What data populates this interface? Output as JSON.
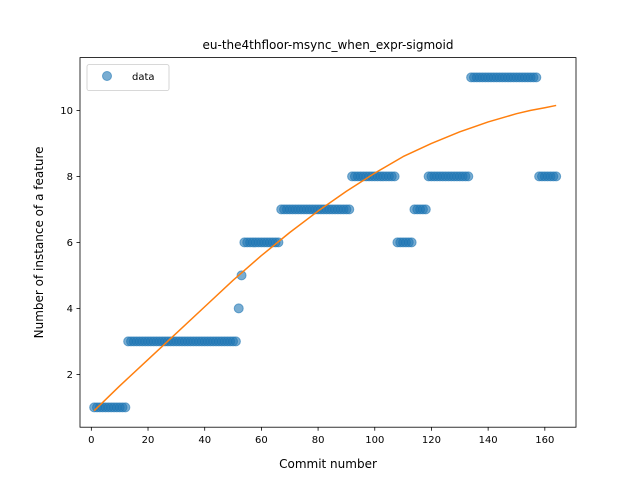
{
  "chart_data": {
    "type": "scatter",
    "title": "eu-the4thfloor-msync_when_expr-sigmoid",
    "xlabel": "Commit number",
    "ylabel": "Number of instance of a feature",
    "xlim": [
      -4,
      171
    ],
    "ylim": [
      0.4,
      11.6
    ],
    "xticks": [
      0,
      20,
      40,
      60,
      80,
      100,
      120,
      140,
      160
    ],
    "yticks": [
      2,
      4,
      6,
      8,
      10
    ],
    "grid": false,
    "legend": {
      "position": "top-left",
      "entries": [
        "data"
      ]
    },
    "series": [
      {
        "name": "data",
        "kind": "scatter",
        "color": "#1f77b4",
        "segments": [
          {
            "x_from": 1,
            "x_to": 12,
            "y": 1
          },
          {
            "x_from": 13,
            "x_to": 51,
            "y": 3
          },
          {
            "x_from": 52,
            "x_to": 52,
            "y": 4
          },
          {
            "x_from": 53,
            "x_to": 53,
            "y": 5
          },
          {
            "x_from": 54,
            "x_to": 66,
            "y": 6
          },
          {
            "x_from": 67,
            "x_to": 91,
            "y": 7
          },
          {
            "x_from": 92,
            "x_to": 107,
            "y": 8
          },
          {
            "x_from": 108,
            "x_to": 113,
            "y": 6
          },
          {
            "x_from": 114,
            "x_to": 118,
            "y": 7
          },
          {
            "x_from": 119,
            "x_to": 133,
            "y": 8
          },
          {
            "x_from": 134,
            "x_to": 157,
            "y": 11
          },
          {
            "x_from": 158,
            "x_to": 164,
            "y": 8
          }
        ]
      },
      {
        "name": "",
        "kind": "line",
        "color": "#ff7f0e",
        "x": [
          1,
          10,
          20,
          30,
          40,
          50,
          60,
          70,
          80,
          90,
          100,
          110,
          120,
          130,
          140,
          150,
          155,
          160,
          164
        ],
        "y": [
          0.9,
          1.65,
          2.45,
          3.25,
          4.05,
          4.85,
          5.6,
          6.3,
          6.95,
          7.55,
          8.1,
          8.6,
          9.0,
          9.35,
          9.65,
          9.9,
          10.0,
          10.08,
          10.15
        ]
      }
    ]
  }
}
